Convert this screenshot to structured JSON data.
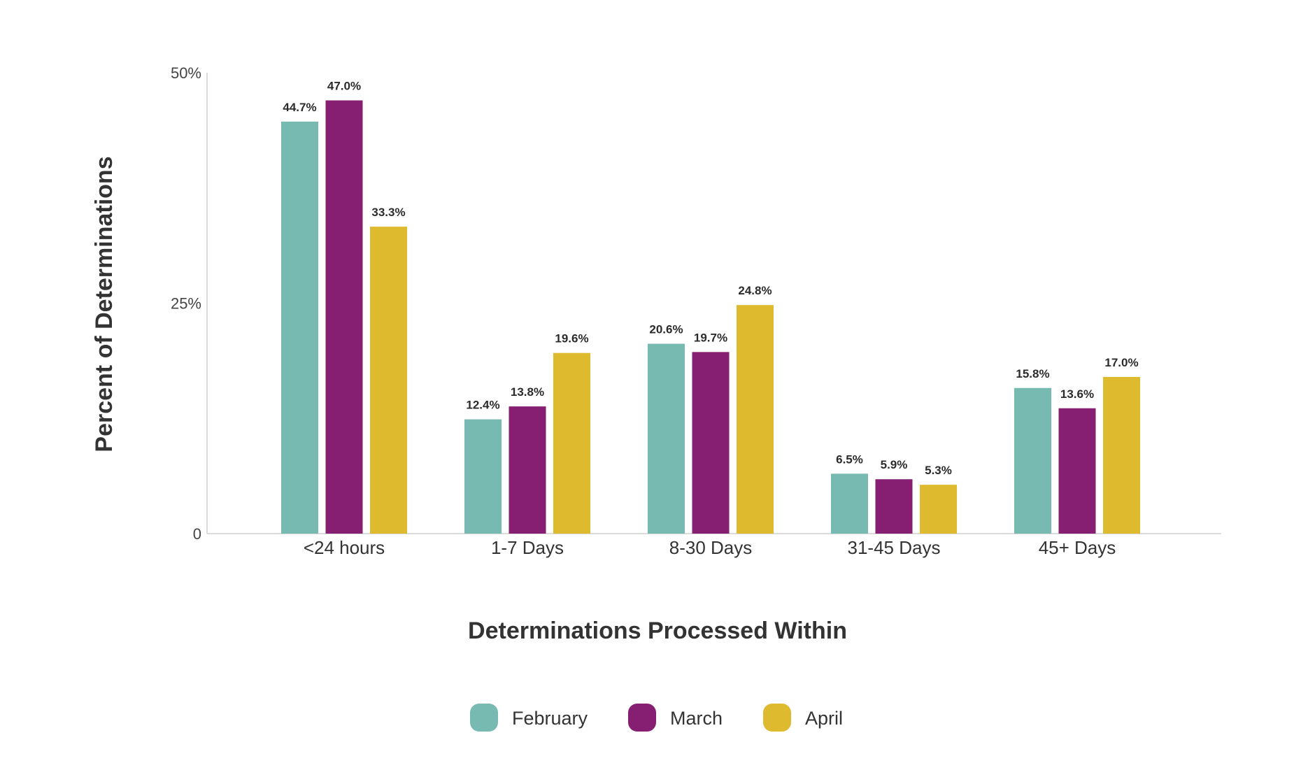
{
  "chart_data": {
    "type": "bar",
    "title": "",
    "xlabel": "Determinations Processed Within",
    "ylabel": "Percent of Determinations",
    "categories": [
      "<24 hours",
      "1-7 Days",
      "8-30 Days",
      "31-45 Days",
      "45+ Days"
    ],
    "series": [
      {
        "name": "February",
        "color": "#77BAB1",
        "values": [
          44.7,
          12.4,
          20.6,
          6.5,
          15.8
        ],
        "labels": [
          "44.7%",
          "12.4%",
          "20.6%",
          "6.5%",
          "15.8%"
        ]
      },
      {
        "name": "March",
        "color": "#861F72",
        "values": [
          47.0,
          13.8,
          19.7,
          5.9,
          13.6
        ],
        "labels": [
          "47.0%",
          "13.8%",
          "19.7%",
          "5.9%",
          "13.6%"
        ]
      },
      {
        "name": "April",
        "color": "#DEBA2F",
        "values": [
          33.3,
          19.6,
          24.8,
          5.3,
          17.0
        ],
        "labels": [
          "33.3%",
          "19.6%",
          "24.8%",
          "5.3%",
          "17.0%"
        ]
      }
    ],
    "ylim": [
      0,
      50
    ],
    "yticks": [
      {
        "value": 0,
        "label": "0"
      },
      {
        "value": 25,
        "label": "25%"
      },
      {
        "value": 50,
        "label": "50%"
      }
    ],
    "grid": false,
    "legend_position": "bottom-center"
  }
}
